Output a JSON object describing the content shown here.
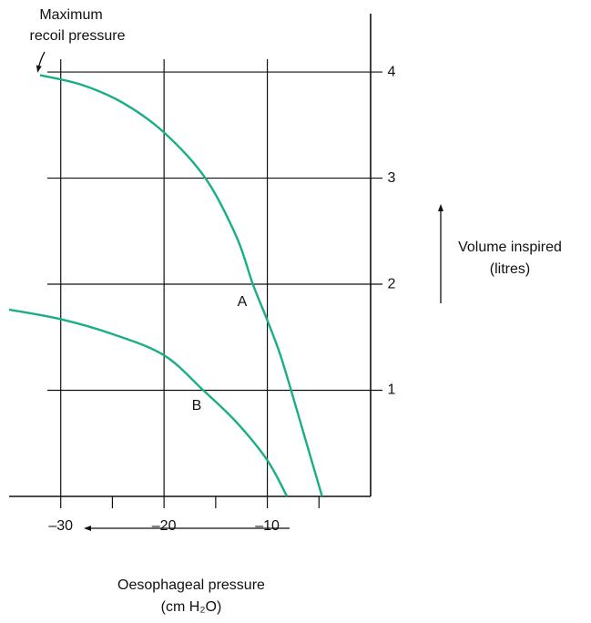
{
  "chart_data": {
    "type": "line",
    "annotation": [
      "Maximum",
      "recoil pressure"
    ],
    "xlabel": [
      "Oesophageal pressure",
      "(cm H₂O)"
    ],
    "ylabel": [
      "Volume inspired",
      "(litres)"
    ],
    "xlim": [
      -35,
      0
    ],
    "ylim": [
      0,
      4.55
    ],
    "xticks": [
      {
        "value": -30,
        "label": "–30"
      },
      {
        "value": -20,
        "label": "–20"
      },
      {
        "value": -10,
        "label": "–10"
      }
    ],
    "xminorticks": [
      -25,
      -15,
      -5
    ],
    "yticks": [
      1,
      2,
      3,
      4
    ],
    "grid": true,
    "series": [
      {
        "name": "A",
        "color": "#1aae86",
        "x": [
          -32,
          -28,
          -24,
          -20,
          -16,
          -13,
          -11.4,
          -10,
          -8.8,
          -7.7,
          -6.2,
          -4.7
        ],
        "values": [
          3.97,
          3.88,
          3.71,
          3.43,
          3.0,
          2.45,
          2.0,
          1.66,
          1.35,
          1.0,
          0.5,
          0
        ]
      },
      {
        "name": "B",
        "color": "#1aae86",
        "x": [
          -35,
          -30,
          -25,
          -20,
          -16.2,
          -13,
          -10,
          -8.1
        ],
        "values": [
          1.76,
          1.67,
          1.53,
          1.33,
          1.0,
          0.7,
          0.34,
          0
        ]
      }
    ]
  }
}
